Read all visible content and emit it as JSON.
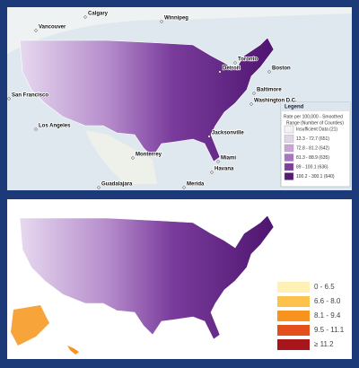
{
  "top_map": {
    "cities": [
      "Calgary",
      "Winnipeg",
      "Vancouver",
      "Toronto",
      "Boston",
      "Detroit",
      "San Francisco",
      "Los Angeles",
      "Baltimore",
      "Washington D.C.",
      "Jacksonville",
      "Miami",
      "Monterrey",
      "Havana",
      "Guadalajara",
      "Merida"
    ],
    "legend": {
      "title": "Legend",
      "subtitle": "Rate per 100,000 - Smoothed",
      "range_label": "Range (Number of Counties)",
      "entries": [
        {
          "label": "Insufficient Data (21)",
          "color": "#f4f1f7"
        },
        {
          "label": "13.3 - 72.7 (651)",
          "color": "#e2d4ea"
        },
        {
          "label": "72.8 - 81.2 (642)",
          "color": "#c8a6d8"
        },
        {
          "label": "81.3 - 88.9 (635)",
          "color": "#a676c0"
        },
        {
          "label": "89 - 100.1 (636)",
          "color": "#7e3f9f"
        },
        {
          "label": "100.2 - 300.1 (640)",
          "color": "#561a78"
        }
      ]
    }
  },
  "bottom_map": {
    "legend": {
      "entries": [
        {
          "label": "0 - 6.5",
          "color": "#fdf1b6"
        },
        {
          "label": "6.6 - 8.0",
          "color": "#fcc24c"
        },
        {
          "label": "8.1 - 9.4",
          "color": "#f7931e"
        },
        {
          "label": "9.5 - 11.1",
          "color": "#e4501b"
        },
        {
          "label": "≥ 11.2",
          "color": "#a8151a"
        }
      ]
    }
  }
}
